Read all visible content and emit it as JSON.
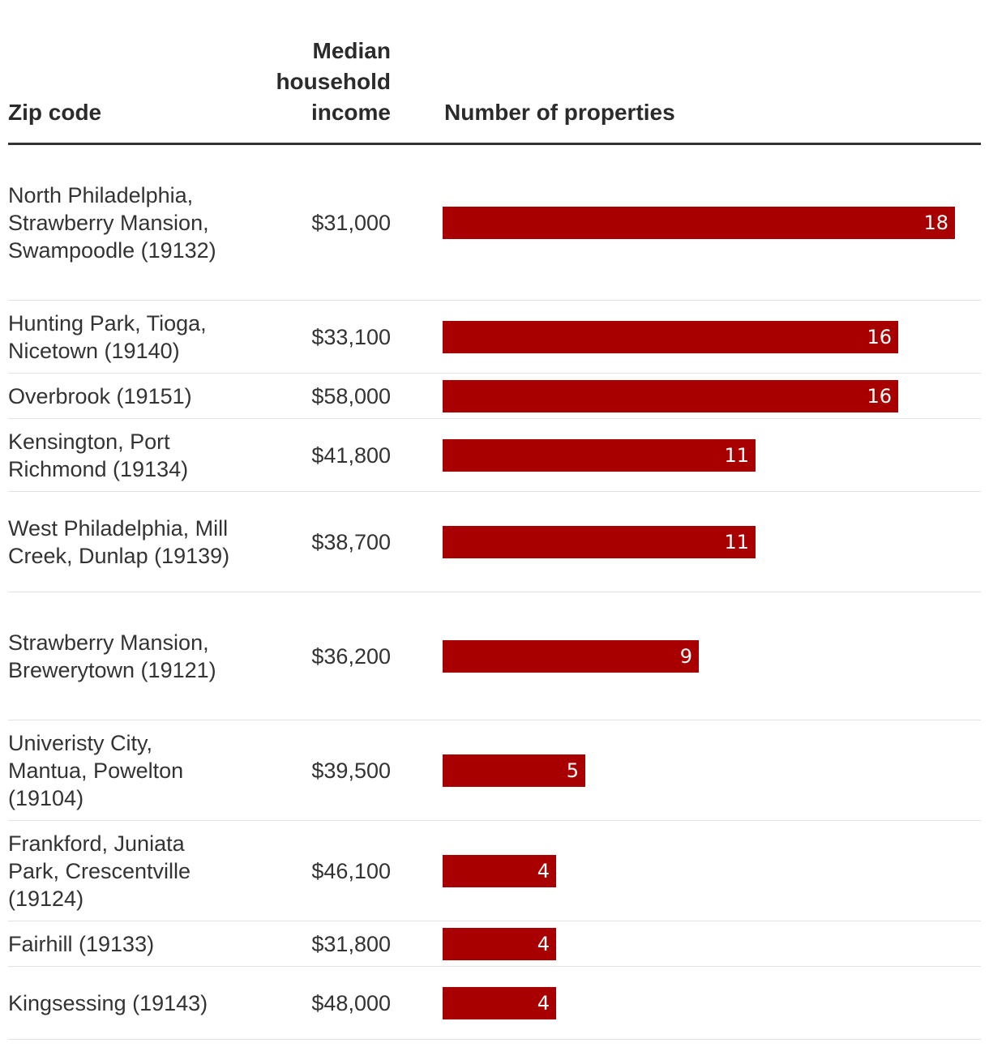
{
  "headers": {
    "zip": "Zip code",
    "income_lines": [
      "Median",
      "household",
      "income"
    ],
    "properties": "Number of properties"
  },
  "chart_data": {
    "type": "bar",
    "orientation": "horizontal",
    "title": "",
    "xlabel": "Number of properties",
    "ylabel": "Zip code",
    "xlim": [
      0,
      18
    ],
    "bar_color": "#a80000",
    "rows": [
      {
        "zip": "North Philadelphia, Strawberry Mansion, Swampoodle (19132)",
        "income": "$31,000",
        "value": 18
      },
      {
        "zip": "Hunting Park, Tioga, Nicetown (19140)",
        "income": "$33,100",
        "value": 16
      },
      {
        "zip": "Overbrook (19151)",
        "income": "$58,000",
        "value": 16
      },
      {
        "zip": "Kensington, Port Richmond (19134)",
        "income": "$41,800",
        "value": 11
      },
      {
        "zip": "West Philadelphia, Mill Creek, Dunlap (19139)",
        "income": "$38,700",
        "value": 11
      },
      {
        "zip": "Strawberry Mansion, Brewerytown (19121)",
        "income": "$36,200",
        "value": 9
      },
      {
        "zip": "Univeristy City, Mantua, Powelton (19104)",
        "income": "$39,500",
        "value": 5
      },
      {
        "zip": "Frankford, Juniata Park, Crescentville (19124)",
        "income": "$46,100",
        "value": 4
      },
      {
        "zip": "Fairhill (19133)",
        "income": "$31,800",
        "value": 4
      },
      {
        "zip": "Kingsessing (19143)",
        "income": "$48,000",
        "value": 4
      }
    ]
  }
}
